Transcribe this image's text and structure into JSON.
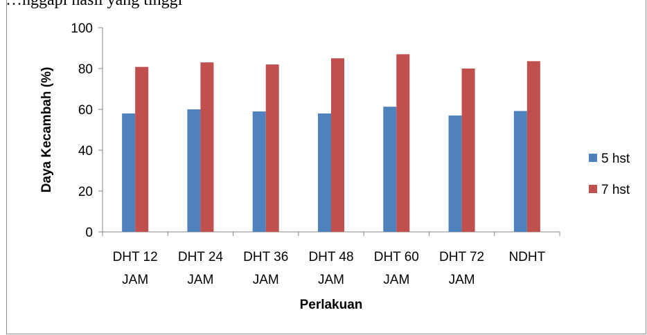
{
  "caption": "…nggapi hasil yang tinggi",
  "chart_data": {
    "type": "bar",
    "categories": [
      [
        "DHT 12",
        "JAM"
      ],
      [
        "DHT 24",
        "JAM"
      ],
      [
        "DHT 36",
        "JAM"
      ],
      [
        "DHT 48",
        "JAM"
      ],
      [
        "DHT 60",
        "JAM"
      ],
      [
        "DHT 72",
        "JAM"
      ],
      [
        "NDHT"
      ]
    ],
    "series": [
      {
        "name": "5 hst",
        "color": "#4f81bd",
        "values": [
          58,
          60,
          59,
          58,
          61.3,
          57,
          59.2
        ]
      },
      {
        "name": "7 hst",
        "color": "#c0504d",
        "values": [
          80.8,
          83,
          82,
          85,
          87,
          80,
          83.6
        ]
      }
    ],
    "xlabel": "Perlakuan",
    "ylabel": "Daya Kecambah (%)",
    "ylim": [
      0,
      100
    ],
    "yticks": [
      0,
      20,
      40,
      60,
      80,
      100
    ],
    "grid": false,
    "legend_position": "right"
  }
}
